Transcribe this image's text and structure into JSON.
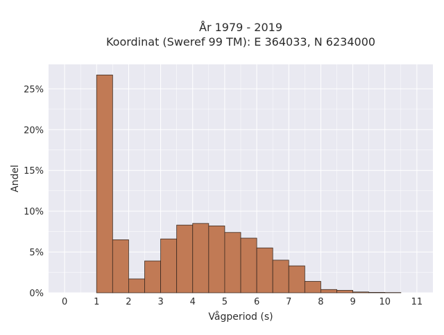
{
  "chart_data": {
    "type": "bar",
    "title_line1": "År 1979 - 2019",
    "title_line2": "Koordinat (Sweref 99 TM): E 364033, N 6234000",
    "xlabel": "Vågperiod (s)",
    "ylabel": "Andel",
    "xlim": [
      -0.5,
      11.5
    ],
    "ylim": [
      0,
      0.28
    ],
    "x_ticks": [
      "0",
      "1",
      "2",
      "3",
      "4",
      "5",
      "6",
      "7",
      "8",
      "9",
      "10",
      "11"
    ],
    "y_ticks": [
      "0%",
      "5%",
      "10%",
      "15%",
      "20%",
      "25%"
    ],
    "bin_width": 0.5,
    "bins": [
      {
        "x0": 1.0,
        "value": 0.267
      },
      {
        "x0": 1.5,
        "value": 0.065
      },
      {
        "x0": 2.0,
        "value": 0.017
      },
      {
        "x0": 2.5,
        "value": 0.039
      },
      {
        "x0": 3.0,
        "value": 0.066
      },
      {
        "x0": 3.5,
        "value": 0.083
      },
      {
        "x0": 4.0,
        "value": 0.085
      },
      {
        "x0": 4.5,
        "value": 0.082
      },
      {
        "x0": 5.0,
        "value": 0.074
      },
      {
        "x0": 5.5,
        "value": 0.067
      },
      {
        "x0": 6.0,
        "value": 0.055
      },
      {
        "x0": 6.5,
        "value": 0.04
      },
      {
        "x0": 7.0,
        "value": 0.033
      },
      {
        "x0": 7.5,
        "value": 0.014
      },
      {
        "x0": 8.0,
        "value": 0.004
      },
      {
        "x0": 8.5,
        "value": 0.003
      },
      {
        "x0": 9.0,
        "value": 0.001
      },
      {
        "x0": 9.5,
        "value": 0.0005
      },
      {
        "x0": 10.0,
        "value": 0.0003
      }
    ],
    "grid": true,
    "colors": {
      "bar_fill": "#c17a55",
      "bar_edge": "#3a2a20",
      "plot_background": "#e9e9f1",
      "grid": "#ffffff"
    }
  }
}
